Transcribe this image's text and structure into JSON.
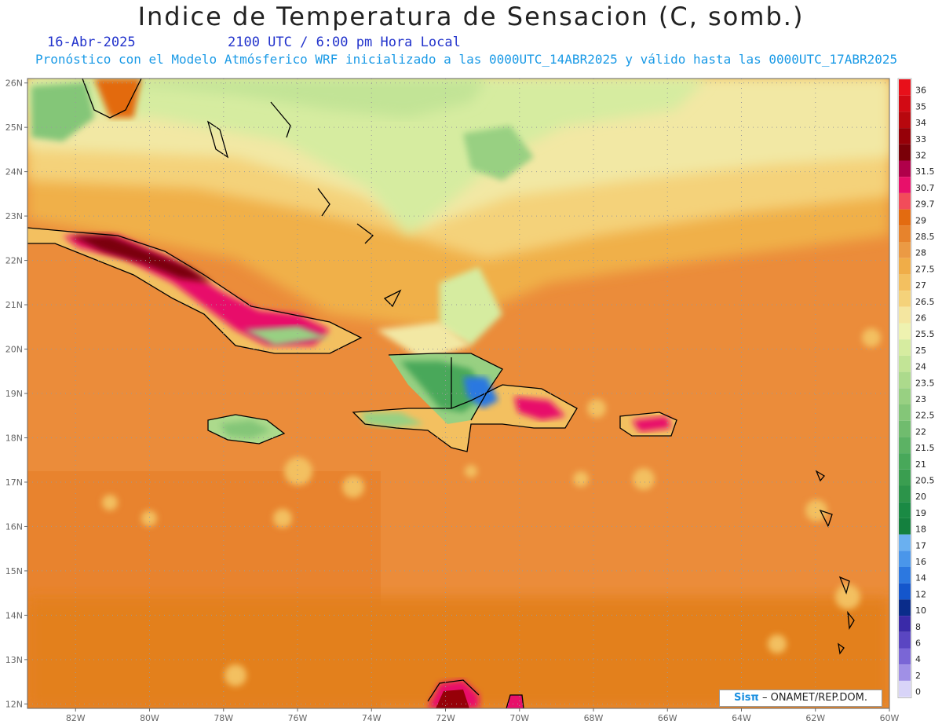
{
  "title": "Indice de Temperatura de Sensacion (C, somb.)",
  "date": "16-Abr-2025",
  "time": "2100 UTC / 6:00 pm Hora Local",
  "model_info": "Pronóstico con el Modelo Atmósferico WRF inicializado a las 0000UTC_14ABR2025 y válido hasta las  0000UTC_17ABR2025",
  "credit": {
    "logo": "Sisπ",
    "text": "– ONAMET/REP.DOM."
  },
  "map": {
    "lon_range": [
      -83.3,
      -60
    ],
    "lat_range": [
      11.9,
      26.1
    ],
    "lon_ticks": [
      "82W",
      "80W",
      "78W",
      "76W",
      "74W",
      "72W",
      "70W",
      "68W",
      "66W",
      "64W",
      "62W",
      "60W"
    ],
    "lat_ticks": [
      "12N",
      "13N",
      "14N",
      "15N",
      "16N",
      "17N",
      "18N",
      "19N",
      "20N",
      "21N",
      "22N",
      "23N",
      "24N",
      "25N",
      "26N"
    ],
    "grid": true
  },
  "legend": {
    "levels": [
      "36",
      "35",
      "34",
      "33",
      "32",
      "31.5",
      "30.7",
      "29.7",
      "29",
      "28.5",
      "28",
      "27.5",
      "27",
      "26.5",
      "26",
      "25.5",
      "25",
      "24",
      "23.5",
      "23",
      "22.5",
      "22",
      "21.5",
      "21",
      "20.5",
      "20",
      "19",
      "18",
      "17",
      "16",
      "14",
      "12",
      "10",
      "8",
      "6",
      "4",
      "2",
      "0"
    ],
    "colors": [
      "#e8101a",
      "#d20a14",
      "#b8080e",
      "#960008",
      "#7a0008",
      "#b0004a",
      "#e8106a",
      "#f24c5a",
      "#e36b10",
      "#e7832c",
      "#eb9a44",
      "#f0ad48",
      "#f3c060",
      "#f4d27a",
      "#f4e6a0",
      "#eef2b0",
      "#d6eca0",
      "#c2e496",
      "#acda8c",
      "#98d082",
      "#84c678",
      "#70bc6e",
      "#5cb264",
      "#48a85a",
      "#3a9e50",
      "#2c944a",
      "#1a8a44",
      "#14803e",
      "#6ab0f0",
      "#4a96ea",
      "#2c78e0",
      "#1456cc",
      "#0a2c8a",
      "#3a2aa8",
      "#5a46c2",
      "#7a66d6",
      "#a090e6",
      "#d8d4f8"
    ]
  }
}
